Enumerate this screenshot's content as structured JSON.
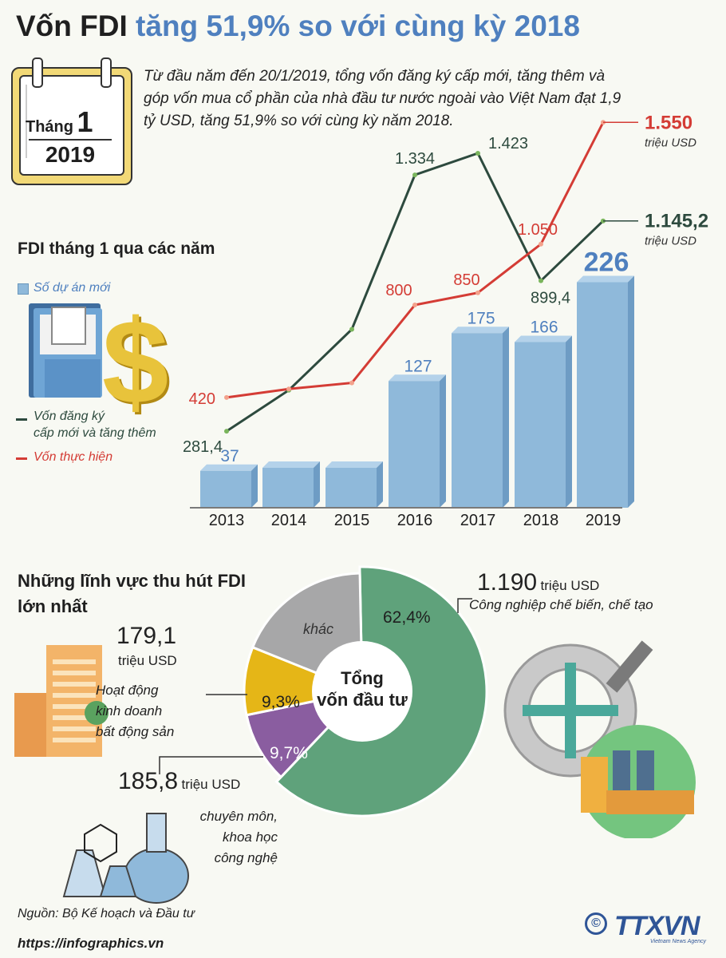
{
  "title": {
    "part1": "Vốn FDI",
    "part2": "tăng 51,9% so với cùng kỳ 2018"
  },
  "calendar": {
    "month_label": "Tháng",
    "month_number": "1",
    "year": "2019"
  },
  "intro_text": "Từ đầu năm đến 20/1/2019, tổng vốn đăng ký cấp mới, tăng thêm và góp vốn mua cổ phần của nhà đầu tư nước ngoài vào Việt Nam đạt 1,9 tỷ USD, tăng 51,9% so với cùng kỳ năm 2018.",
  "section1_title": "FDI tháng 1 qua các năm",
  "legend": {
    "bars": "Số dự án mới",
    "green_line_1": "Vốn đăng ký",
    "green_line_2": "cấp mới và tăng thêm",
    "red_line": "Vốn thực hiện"
  },
  "colors": {
    "green": "#2d4a3e",
    "red": "#d43c35",
    "bar": "#8fb9da",
    "bar_top": "#b4d2ea",
    "bar_label": "#4f80bf",
    "pie_green": "#5fa27b",
    "pie_gray": "#a7a7a8",
    "pie_yellow": "#e5b617",
    "pie_purple": "#8a5da0"
  },
  "chart_data": [
    {
      "type": "bar",
      "categories": [
        "2013",
        "2014",
        "2015",
        "2016",
        "2017",
        "2018",
        "2019"
      ],
      "series": [
        {
          "name": "Số dự án mới",
          "values": [
            37,
            null,
            null,
            127,
            175,
            166,
            226
          ]
        }
      ],
      "value_labels": [
        "37",
        "",
        "",
        "127",
        "175",
        "166",
        "226"
      ]
    },
    {
      "type": "line",
      "categories": [
        "2013",
        "2014",
        "2015",
        "2016",
        "2017",
        "2018",
        "2019"
      ],
      "series": [
        {
          "name": "Vốn đăng ký cấp mới và tăng thêm",
          "values": [
            281.4,
            450,
            700,
            1334,
            1423,
            899.4,
            1145.2
          ],
          "labels": [
            "281,4",
            "",
            "",
            "1.334",
            "1.423",
            "899,4",
            "1.145,2"
          ]
        },
        {
          "name": "Vốn thực hiện",
          "values": [
            420,
            455,
            480,
            800,
            850,
            1050,
            1550
          ],
          "labels": [
            "420",
            "",
            "",
            "800",
            "850",
            "1.050",
            "1.550"
          ]
        }
      ],
      "end_unit": "triệu USD"
    },
    {
      "type": "pie",
      "center_label_1": "Tổng",
      "center_label_2": "vốn đầu tư",
      "slices": [
        {
          "label": "Công nghiệp chế biến, chế tạo",
          "percent": 62.4,
          "percent_label": "62,4%",
          "value_label": "1.190",
          "unit": "triệu USD"
        },
        {
          "label": "chuyên môn, khoa học công nghệ",
          "percent": 9.7,
          "percent_label": "9,7%",
          "value_label": "185,8",
          "unit": "triệu USD"
        },
        {
          "label": "Hoạt động kinh doanh bất động sản",
          "percent": 9.3,
          "percent_label": "9,3%",
          "value_label": "179,1",
          "unit": "triệu USD"
        },
        {
          "label": "khác",
          "percent": 18.6,
          "percent_label": ""
        }
      ]
    }
  ],
  "section2": {
    "title_1": "Những lĩnh vực thu hút FDI",
    "title_2": "lớn nhất",
    "manufacturing": {
      "value": "1.190",
      "unit": "triệu USD",
      "label": "Công nghiệp chế biến, chế tạo"
    },
    "realestate": {
      "value": "179,1",
      "unit": "triệu USD",
      "label_1": "Hoạt động",
      "label_2": "kinh doanh",
      "label_3": "bất động sản"
    },
    "science": {
      "value": "185,8",
      "unit": "triệu USD",
      "label_1": "chuyên môn,",
      "label_2": "khoa học",
      "label_3": "công nghệ"
    },
    "other_label": "khác"
  },
  "footer": {
    "source": "Nguồn: Bộ Kế hoạch và Đầu tư",
    "url": "https://infographics.vn",
    "copyright_symbol": "©",
    "agency_logo": "TTXVN",
    "agency_sub": "Vietnam News Agency"
  }
}
